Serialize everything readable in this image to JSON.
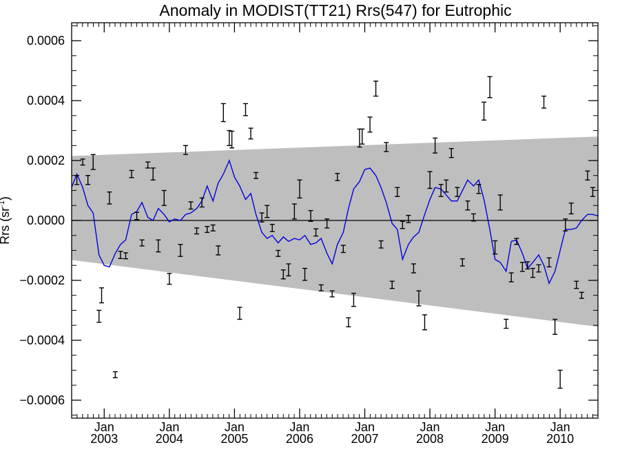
{
  "chart_data": {
    "type": "scatter",
    "title": "Anomaly in MODIST(TT21) Rrs(547) for Eutrophic",
    "xlabel": "",
    "ylabel": "Rrs (sr",
    "ylabel_sup": "-1",
    "ylabel_close": ")",
    "xlim": [
      2002.5,
      2010.58
    ],
    "ylim": [
      -0.00066,
      0.00066
    ],
    "grid": false,
    "yticks": [
      {
        "value": -0.0006,
        "label": "−0.0006"
      },
      {
        "value": -0.0004,
        "label": "−0.0004"
      },
      {
        "value": -0.0002,
        "label": "−0.0002"
      },
      {
        "value": 0.0,
        "label": "0.0000"
      },
      {
        "value": 0.0002,
        "label": "0.0002"
      },
      {
        "value": 0.0004,
        "label": "0.0004"
      },
      {
        "value": 0.0006,
        "label": "0.0006"
      }
    ],
    "xticks": [
      {
        "value": 2003.0,
        "month": "Jan",
        "year": "2003"
      },
      {
        "value": 2004.0,
        "month": "Jan",
        "year": "2004"
      },
      {
        "value": 2005.0,
        "month": "Jan",
        "year": "2005"
      },
      {
        "value": 2006.0,
        "month": "Jan",
        "year": "2006"
      },
      {
        "value": 2007.0,
        "month": "Jan",
        "year": "2007"
      },
      {
        "value": 2008.0,
        "month": "Jan",
        "year": "2008"
      },
      {
        "value": 2009.0,
        "month": "Jan",
        "year": "2009"
      },
      {
        "value": 2010.0,
        "month": "Jan",
        "year": "2010"
      }
    ],
    "band": {
      "color": "#bebebe",
      "upper": [
        [
          2002.5,
          0.000215
        ],
        [
          2010.58,
          0.00028
        ]
      ],
      "lower": [
        [
          2002.5,
          -0.000132
        ],
        [
          2010.58,
          -0.000355
        ]
      ]
    },
    "zero_line": 0.0,
    "points": [
      [
        2002.58,
        0.000135,
        1.5e-05
      ],
      [
        2002.67,
        0.000195,
        1e-05
      ],
      [
        2002.75,
        0.000135,
        1.5e-05
      ],
      [
        2002.83,
        0.000195,
        2.5e-05
      ],
      [
        2002.92,
        -0.00032,
        2e-05
      ],
      [
        2002.96,
        -0.00025,
        2.5e-05
      ],
      [
        2003.08,
        7.5e-05,
        2e-05
      ],
      [
        2003.17,
        -0.000515,
        1e-05
      ],
      [
        2003.25,
        -0.000115,
        1.2e-05
      ],
      [
        2003.33,
        -0.000118,
        1e-05
      ],
      [
        2003.42,
        0.000155,
        1.2e-05
      ],
      [
        2003.5,
        1.5e-05,
        1.2e-05
      ],
      [
        2003.58,
        -7.5e-05,
        1e-05
      ],
      [
        2003.67,
        0.000185,
        1e-05
      ],
      [
        2003.75,
        0.000155,
        2e-05
      ],
      [
        2003.83,
        -8.5e-05,
        2e-05
      ],
      [
        2003.92,
        7.5e-05,
        2.5e-05
      ],
      [
        2004.0,
        -0.000195,
        1.8e-05
      ],
      [
        2004.17,
        -0.0001,
        2e-05
      ],
      [
        2004.25,
        0.000235,
        1.5e-05
      ],
      [
        2004.33,
        5e-05,
        1.2e-05
      ],
      [
        2004.42,
        -3.5e-05,
        1e-05
      ],
      [
        2004.5,
        6e-05,
        1.5e-05
      ],
      [
        2004.58,
        -3e-05,
        1e-05
      ],
      [
        2004.67,
        -2.5e-05,
        1e-05
      ],
      [
        2004.75,
        -0.0001,
        1.5e-05
      ],
      [
        2004.83,
        0.00036,
        3e-05
      ],
      [
        2004.92,
        0.000275,
        2.5e-05
      ],
      [
        2004.96,
        0.00027,
        2.8e-05
      ],
      [
        2005.08,
        -0.00031,
        2e-05
      ],
      [
        2005.17,
        0.00037,
        2e-05
      ],
      [
        2005.25,
        0.00029,
        1.8e-05
      ],
      [
        2005.33,
        0.00015,
        1e-05
      ],
      [
        2005.42,
        1e-05,
        1.5e-05
      ],
      [
        2005.5,
        3e-05,
        2e-05
      ],
      [
        2005.58,
        -2.5e-05,
        1.2e-05
      ],
      [
        2005.67,
        -0.00011,
        1e-05
      ],
      [
        2005.75,
        -0.00018,
        1.5e-05
      ],
      [
        2005.83,
        -0.000165,
        2e-05
      ],
      [
        2005.92,
        3e-05,
        2.5e-05
      ],
      [
        2006.0,
        0.000105,
        3e-05
      ],
      [
        2006.08,
        -0.00018,
        2e-05
      ],
      [
        2006.17,
        1.5e-05,
        1.8e-05
      ],
      [
        2006.25,
        -4e-05,
        1.2e-05
      ],
      [
        2006.33,
        -0.000225,
        1e-05
      ],
      [
        2006.42,
        -1e-05,
        1.5e-05
      ],
      [
        2006.5,
        -0.000245,
        1e-05
      ],
      [
        2006.58,
        0.000145,
        1.2e-05
      ],
      [
        2006.67,
        -9.5e-05,
        1.2e-05
      ],
      [
        2006.75,
        -0.00034,
        1.5e-05
      ],
      [
        2006.83,
        -0.000265,
        2.2e-05
      ],
      [
        2006.92,
        0.000275,
        3e-05
      ],
      [
        2006.96,
        0.00028,
        2.5e-05
      ],
      [
        2007.08,
        0.00032,
        2.5e-05
      ],
      [
        2007.17,
        0.00044,
        2.5e-05
      ],
      [
        2007.25,
        -8e-05,
        1.2e-05
      ],
      [
        2007.33,
        0.000245,
        1.5e-05
      ],
      [
        2007.42,
        -0.000215,
        1.2e-05
      ],
      [
        2007.5,
        9.5e-05,
        1.5e-05
      ],
      [
        2007.58,
        -1.5e-05,
        1.2e-05
      ],
      [
        2007.67,
        5e-06,
        1.2e-05
      ],
      [
        2007.75,
        -0.00016,
        1.5e-05
      ],
      [
        2007.83,
        -0.00026,
        2.5e-05
      ],
      [
        2007.92,
        -0.00034,
        2.5e-05
      ],
      [
        2008.0,
        0.000135,
        2.8e-05
      ],
      [
        2008.08,
        0.00025,
        2.5e-05
      ],
      [
        2008.17,
        0.0001,
        2e-05
      ],
      [
        2008.25,
        0.000115,
        2e-05
      ],
      [
        2008.33,
        0.000225,
        1.5e-05
      ],
      [
        2008.42,
        9.5e-05,
        1.5e-05
      ],
      [
        2008.5,
        -0.00014,
        1.2e-05
      ],
      [
        2008.58,
        5e-05,
        1.5e-05
      ],
      [
        2008.67,
        1e-05,
        1.2e-05
      ],
      [
        2008.75,
        0.000105,
        1.5e-05
      ],
      [
        2008.83,
        0.000365,
        3e-05
      ],
      [
        2008.92,
        0.000445,
        3.5e-05
      ],
      [
        2009.0,
        -9e-05,
        2.2e-05
      ],
      [
        2009.08,
        6e-05,
        2.5e-05
      ],
      [
        2009.17,
        -0.000345,
        1.5e-05
      ],
      [
        2009.25,
        -0.00019,
        1.5e-05
      ],
      [
        2009.33,
        -7e-05,
        1e-05
      ],
      [
        2009.42,
        -0.000155,
        1.5e-05
      ],
      [
        2009.5,
        -0.00015,
        1.2e-05
      ],
      [
        2009.58,
        -0.000175,
        1.5e-05
      ],
      [
        2009.67,
        -0.00016,
        1.2e-05
      ],
      [
        2009.75,
        0.000395,
        2e-05
      ],
      [
        2009.83,
        -0.00014,
        1.5e-05
      ],
      [
        2009.92,
        -0.000355,
        2.5e-05
      ],
      [
        2010.0,
        -0.00053,
        3e-05
      ],
      [
        2010.08,
        -1.5e-05,
        2e-05
      ],
      [
        2010.17,
        4e-05,
        1.8e-05
      ],
      [
        2010.25,
        -0.000215,
        1.2e-05
      ],
      [
        2010.33,
        -0.00025,
        1e-05
      ],
      [
        2010.42,
        0.00015,
        1.5e-05
      ],
      [
        2010.5,
        9.5e-05,
        1.5e-05
      ]
    ],
    "smooth_line": {
      "color": "#0000dd",
      "values": [
        [
          2002.5,
          0.00011
        ],
        [
          2002.58,
          0.000155
        ],
        [
          2002.67,
          0.00011
        ],
        [
          2002.75,
          5e-05
        ],
        [
          2002.83,
          2.5e-05
        ],
        [
          2002.92,
          -0.000115
        ],
        [
          2003.0,
          -0.00015
        ],
        [
          2003.08,
          -0.000155
        ],
        [
          2003.17,
          -0.00011
        ],
        [
          2003.25,
          -8e-05
        ],
        [
          2003.33,
          -6.5e-05
        ],
        [
          2003.42,
          2e-05
        ],
        [
          2003.5,
          3e-05
        ],
        [
          2003.58,
          6e-05
        ],
        [
          2003.67,
          1e-05
        ],
        [
          2003.75,
          0.0
        ],
        [
          2003.83,
          4e-05
        ],
        [
          2003.92,
          2e-05
        ],
        [
          2004.0,
          -5e-06
        ],
        [
          2004.08,
          5e-06
        ],
        [
          2004.17,
          0.0
        ],
        [
          2004.25,
          2e-05
        ],
        [
          2004.33,
          2.5e-05
        ],
        [
          2004.42,
          4e-05
        ],
        [
          2004.5,
          6.5e-05
        ],
        [
          2004.58,
          0.000115
        ],
        [
          2004.67,
          6.5e-05
        ],
        [
          2004.75,
          0.000125
        ],
        [
          2004.83,
          0.000155
        ],
        [
          2004.92,
          0.0002
        ],
        [
          2005.0,
          0.000145
        ],
        [
          2005.08,
          0.000115
        ],
        [
          2005.17,
          7e-05
        ],
        [
          2005.25,
          9e-05
        ],
        [
          2005.33,
          2e-05
        ],
        [
          2005.42,
          -4e-05
        ],
        [
          2005.5,
          -6e-05
        ],
        [
          2005.58,
          -5e-05
        ],
        [
          2005.67,
          -7.5e-05
        ],
        [
          2005.75,
          -5.5e-05
        ],
        [
          2005.83,
          -7e-05
        ],
        [
          2005.92,
          -6e-05
        ],
        [
          2006.0,
          -6.5e-05
        ],
        [
          2006.08,
          -5e-05
        ],
        [
          2006.17,
          -8e-05
        ],
        [
          2006.25,
          -7.5e-05
        ],
        [
          2006.33,
          -6e-05
        ],
        [
          2006.42,
          -0.00011
        ],
        [
          2006.5,
          -0.000145
        ],
        [
          2006.58,
          -8e-05
        ],
        [
          2006.67,
          -4e-05
        ],
        [
          2006.75,
          4e-05
        ],
        [
          2006.83,
          0.000105
        ],
        [
          2006.92,
          0.00013
        ],
        [
          2007.0,
          0.00017
        ],
        [
          2007.08,
          0.000175
        ],
        [
          2007.17,
          0.00015
        ],
        [
          2007.25,
          0.00011
        ],
        [
          2007.33,
          6e-05
        ],
        [
          2007.42,
          -1e-05
        ],
        [
          2007.5,
          -3e-05
        ],
        [
          2007.58,
          -0.00013
        ],
        [
          2007.67,
          -8e-05
        ],
        [
          2007.75,
          -5.5e-05
        ],
        [
          2007.83,
          -4e-05
        ],
        [
          2007.92,
          2e-05
        ],
        [
          2008.0,
          7e-05
        ],
        [
          2008.08,
          0.00011
        ],
        [
          2008.17,
          0.000105
        ],
        [
          2008.25,
          8.5e-05
        ],
        [
          2008.33,
          6.5e-05
        ],
        [
          2008.42,
          6.5e-05
        ],
        [
          2008.5,
          0.0001
        ],
        [
          2008.58,
          0.000135
        ],
        [
          2008.67,
          0.000115
        ],
        [
          2008.75,
          0.000135
        ],
        [
          2008.83,
          7e-05
        ],
        [
          2008.92,
          -3e-05
        ],
        [
          2009.0,
          -0.00013
        ],
        [
          2009.08,
          -0.00014
        ],
        [
          2009.17,
          -0.00017
        ],
        [
          2009.25,
          -7e-05
        ],
        [
          2009.33,
          -6.5e-05
        ],
        [
          2009.42,
          -0.00011
        ],
        [
          2009.5,
          -0.00016
        ],
        [
          2009.58,
          -0.00014
        ],
        [
          2009.67,
          -0.000115
        ],
        [
          2009.75,
          -0.00015
        ],
        [
          2009.83,
          -0.00021
        ],
        [
          2009.92,
          -0.00017
        ],
        [
          2010.0,
          -0.0001
        ],
        [
          2010.08,
          -3e-05
        ],
        [
          2010.17,
          -3e-05
        ],
        [
          2010.25,
          -2.5e-05
        ],
        [
          2010.33,
          0.0
        ],
        [
          2010.42,
          2e-05
        ],
        [
          2010.5,
          2e-05
        ],
        [
          2010.58,
          1.5e-05
        ]
      ]
    }
  }
}
